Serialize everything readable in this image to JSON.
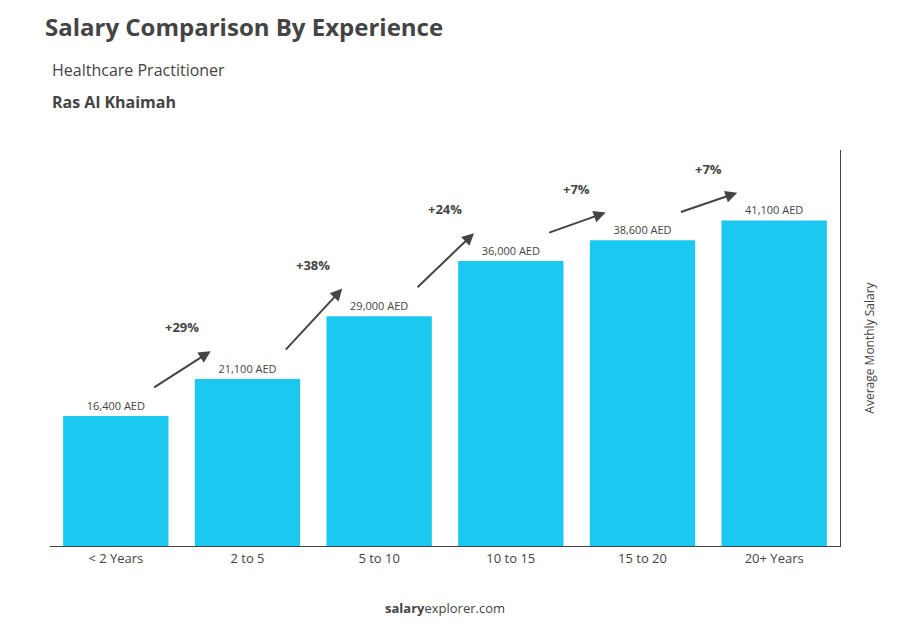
{
  "chart_data": {
    "type": "bar",
    "title": "Salary Comparison By Experience",
    "subtitle": "Healthcare Practitioner",
    "city": "Ras Al Khaimah",
    "ylabel": "Average Monthly Salary",
    "footer": [
      "salary",
      "explorer.com"
    ],
    "categories": [
      "< 2 Years",
      "2 to 5",
      "5 to 10",
      "10 to 15",
      "15 to 20",
      "20+ Years"
    ],
    "values": [
      16400,
      21100,
      29000,
      36000,
      38600,
      41100
    ],
    "value_labels": [
      "16,400 AED",
      "21,100 AED",
      "29,000 AED",
      "36,000 AED",
      "38,600 AED",
      "41,100 AED"
    ],
    "data_labels": true,
    "annotations": [
      "+29%",
      "+38%",
      "+24%",
      "+7%",
      "+7%"
    ],
    "color": "#1BC8F0",
    "ylim": [
      0,
      50000
    ],
    "grid": false,
    "tick_labels": "x"
  }
}
